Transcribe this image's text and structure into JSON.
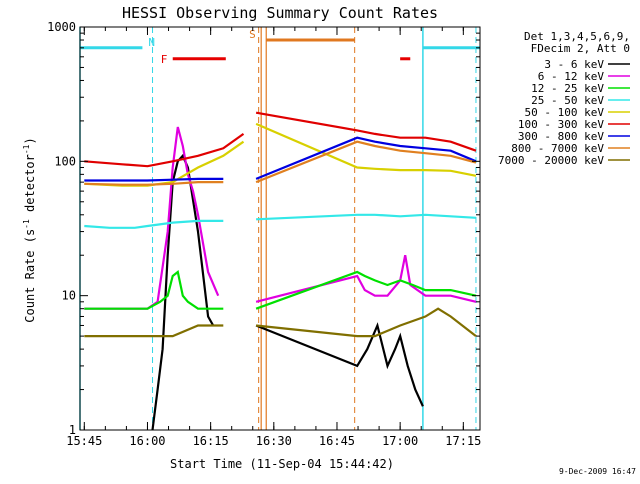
{
  "chart_data": {
    "type": "line",
    "title": "HESSI Observing Summary Count Rates",
    "xlabel": "Start Time (11-Sep-04 15:44:42)",
    "ylabel_main": "Count Rate (s",
    "ylabel_sup1": "-1",
    "ylabel_mid": " detector",
    "ylabel_sup2": "-1",
    "ylabel_end": ")",
    "yscale": "log",
    "ylim": [
      1,
      1000
    ],
    "xlim": [
      15.733,
      17.316
    ],
    "x_tick_labels": [
      "15:45",
      "16:00",
      "16:15",
      "16:30",
      "16:45",
      "17:00",
      "17:15"
    ],
    "x_tick_hours": [
      15.75,
      16.0,
      16.25,
      16.5,
      16.75,
      17.0,
      17.25
    ],
    "y_tick_labels": [
      "1",
      "10",
      "100",
      "1000"
    ],
    "y_tick_values": [
      1,
      10,
      100,
      1000
    ],
    "legend_header": [
      "Det 1,3,4,5,6,9,",
      "FDecim 2, Att 0"
    ],
    "legend_position": "right",
    "footer_date": "9-Dec-2009 16:47",
    "flags": {
      "N_label": "N",
      "F_label": "F",
      "S_label": "S",
      "night_color": "#33d8e8",
      "saa_color": "#e07820",
      "flare_color": "#e60000",
      "night_spans": [
        [
          15.733,
          15.98
        ],
        [
          17.09,
          17.316
        ]
      ],
      "night_solid_lines": [
        15.733,
        17.09
      ],
      "night_dashed_lines": [
        16.02,
        17.3
      ],
      "saa_span": [
        16.47,
        16.82
      ],
      "saa_solid_lines": [
        16.45,
        16.47
      ],
      "saa_dashed_lines": [
        16.44,
        16.82
      ],
      "flare_spans": [
        [
          16.1,
          16.31
        ],
        [
          17.0,
          17.04
        ]
      ],
      "night_bar_level": 700,
      "saa_bar_level": 800,
      "flare_bar_level": 580
    },
    "series": [
      {
        "name": "3 - 6 keV",
        "color": "#000000",
        "x": [
          16.02,
          16.04,
          16.06,
          16.08,
          16.1,
          16.12,
          16.14,
          16.16,
          16.2,
          16.24,
          16.26,
          16.43,
          16.83,
          16.87,
          16.91,
          16.95,
          16.98,
          17.0,
          17.03,
          17.06,
          17.09
        ],
        "y": [
          1,
          2,
          4,
          20,
          70,
          100,
          110,
          90,
          30,
          7,
          6,
          6,
          3,
          4,
          6,
          3,
          4,
          5,
          3,
          2,
          1.5
        ]
      },
      {
        "name": "6 - 12 keV",
        "color": "#e000e0",
        "x": [
          15.75,
          15.8,
          15.85,
          15.9,
          15.95,
          16.0,
          16.04,
          16.08,
          16.1,
          16.12,
          16.14,
          16.16,
          16.18,
          16.2,
          16.24,
          16.28,
          16.43,
          16.83,
          16.86,
          16.9,
          16.95,
          17.0,
          17.02,
          17.04,
          17.1,
          17.2,
          17.3
        ],
        "y": [
          8,
          8,
          8,
          8,
          8,
          8,
          9,
          30,
          90,
          180,
          130,
          80,
          60,
          40,
          15,
          10,
          9,
          14,
          11,
          10,
          10,
          13,
          20,
          12,
          10,
          10,
          9
        ]
      },
      {
        "name": "12 - 25 keV",
        "color": "#00e000",
        "x": [
          15.75,
          15.85,
          15.95,
          16.0,
          16.05,
          16.08,
          16.1,
          16.12,
          16.14,
          16.16,
          16.2,
          16.3,
          16.43,
          16.83,
          16.86,
          16.9,
          16.95,
          17.0,
          17.05,
          17.1,
          17.2,
          17.3
        ],
        "y": [
          8,
          8,
          8,
          8,
          9,
          10,
          14,
          15,
          10,
          9,
          8,
          8,
          8,
          15,
          14,
          13,
          12,
          13,
          12,
          11,
          11,
          10
        ]
      },
      {
        "name": "25 - 50 keV",
        "color": "#33e8e8",
        "x": [
          15.75,
          15.85,
          15.95,
          16.0,
          16.1,
          16.2,
          16.3,
          16.43,
          16.83,
          16.9,
          17.0,
          17.1,
          17.2,
          17.3
        ],
        "y": [
          33,
          32,
          32,
          33,
          35,
          36,
          36,
          37,
          40,
          40,
          39,
          40,
          39,
          38
        ]
      },
      {
        "name": "50 - 100 keV",
        "color": "#d8d000",
        "x": [
          15.75,
          15.9,
          16.0,
          16.1,
          16.2,
          16.3,
          16.38,
          16.43,
          16.83,
          16.9,
          17.0,
          17.1,
          17.2,
          17.3
        ],
        "y": [
          68,
          66,
          66,
          70,
          90,
          110,
          140,
          190,
          90,
          88,
          86,
          86,
          85,
          78
        ]
      },
      {
        "name": "100 - 300 keV",
        "color": "#e00000",
        "x": [
          15.75,
          15.9,
          16.0,
          16.1,
          16.2,
          16.3,
          16.38,
          16.43,
          16.83,
          16.9,
          17.0,
          17.1,
          17.2,
          17.3
        ],
        "y": [
          100,
          95,
          92,
          100,
          110,
          125,
          160,
          230,
          170,
          160,
          150,
          150,
          140,
          120
        ]
      },
      {
        "name": "300 - 800 keV",
        "color": "#0000e0",
        "x": [
          15.75,
          15.9,
          16.0,
          16.1,
          16.2,
          16.3,
          16.43,
          16.83,
          16.9,
          17.0,
          17.1,
          17.2,
          17.3
        ],
        "y": [
          72,
          72,
          72,
          73,
          74,
          74,
          74,
          150,
          140,
          130,
          125,
          120,
          100
        ]
      },
      {
        "name": "800 - 7000 keV",
        "color": "#e08020",
        "x": [
          15.75,
          15.9,
          16.0,
          16.1,
          16.2,
          16.3,
          16.43,
          16.83,
          16.9,
          17.0,
          17.1,
          17.2,
          17.3
        ],
        "y": [
          68,
          67,
          67,
          68,
          70,
          70,
          70,
          140,
          130,
          120,
          115,
          110,
          98
        ]
      },
      {
        "name": "7000 - 20000 keV",
        "color": "#806f00",
        "x": [
          15.75,
          15.85,
          15.95,
          16.0,
          16.1,
          16.2,
          16.3,
          16.43,
          16.83,
          16.9,
          17.0,
          17.1,
          17.15,
          17.2,
          17.3
        ],
        "y": [
          5,
          5,
          5,
          5,
          5,
          6,
          6,
          6,
          5,
          5,
          6,
          7,
          8,
          7,
          5
        ]
      }
    ]
  }
}
